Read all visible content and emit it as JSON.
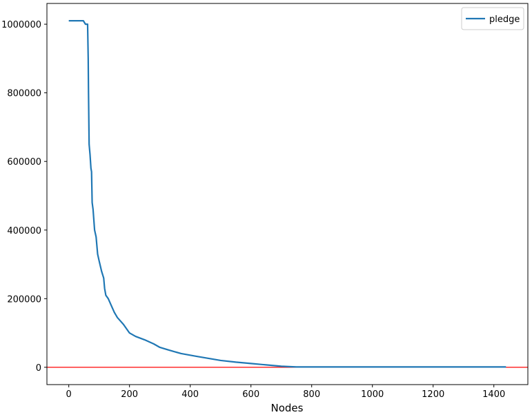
{
  "chart_data": {
    "type": "line",
    "x_label": "Nodes",
    "x": [
      0,
      48,
      55,
      62,
      64,
      65,
      67,
      70,
      73,
      75,
      77,
      80,
      85,
      90,
      95,
      100,
      108,
      115,
      118,
      122,
      130,
      140,
      150,
      160,
      180,
      200,
      220,
      250,
      280,
      300,
      330,
      370,
      420,
      500,
      550,
      600,
      650,
      700,
      750,
      800,
      1440
    ],
    "series": [
      {
        "name": "pledge",
        "color": "#1f77b4",
        "values": [
          1010000,
          1010000,
          1000000,
          1000000,
          900000,
          800000,
          650000,
          620000,
          580000,
          570000,
          480000,
          460000,
          400000,
          380000,
          330000,
          310000,
          280000,
          260000,
          230000,
          210000,
          200000,
          180000,
          160000,
          145000,
          125000,
          100000,
          90000,
          80000,
          68000,
          58000,
          50000,
          40000,
          32000,
          20000,
          15000,
          11000,
          7000,
          3000,
          1000,
          1000,
          1000
        ]
      }
    ],
    "reference_line": {
      "value": 0,
      "color": "#ff0000"
    },
    "xlim": [
      -72,
      1512
    ],
    "xticks": [
      0,
      200,
      400,
      600,
      800,
      1000,
      1200,
      1400
    ],
    "ylim": [
      -50500,
      1060500
    ],
    "yticks": [
      0,
      200000,
      400000,
      600000,
      800000,
      1000000
    ],
    "legend": "upper right"
  }
}
